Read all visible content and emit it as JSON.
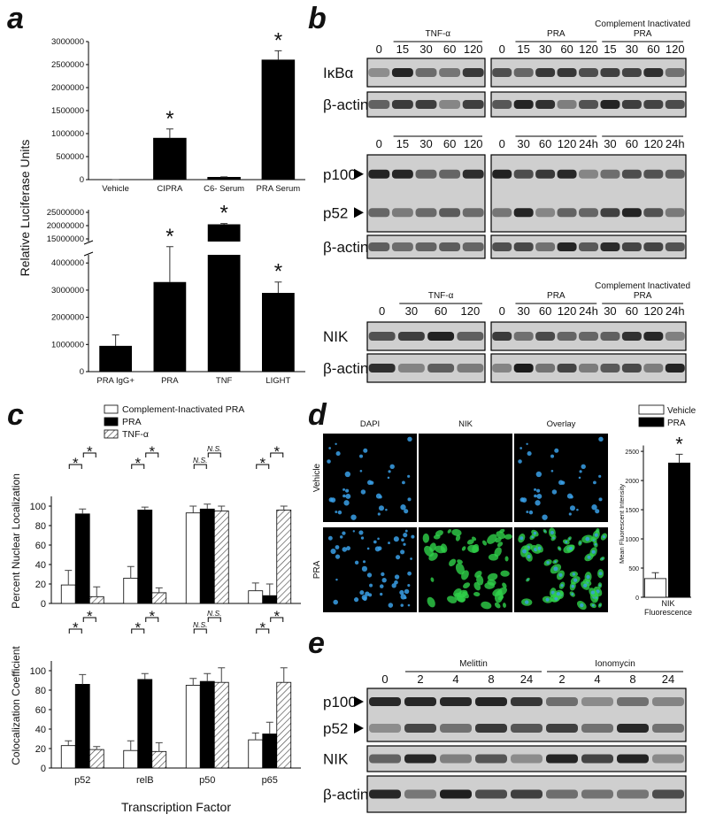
{
  "a": {
    "label": "a",
    "y_label": "Relative Luciferase Units",
    "top": {
      "type": "bar",
      "categories": [
        "Vehicle",
        "CIPRA",
        "C6- Serum",
        "PRA Serum"
      ],
      "values": [
        0,
        900000,
        50000,
        2600000
      ],
      "errors": [
        0,
        200000,
        10000,
        200000
      ],
      "annotations": [
        null,
        "*",
        null,
        "*"
      ],
      "color": "#000000",
      "ylim": [
        0,
        3000000
      ],
      "yticks": [
        0,
        500000,
        1000000,
        1500000,
        2000000,
        2500000,
        3000000
      ]
    },
    "bottom": {
      "type": "broken_bar",
      "categories": [
        "PRA IgG+",
        "PRA",
        "TNF",
        "LIGHT"
      ],
      "values": [
        950000,
        3300000,
        20500000,
        2900000
      ],
      "errors": [
        400000,
        1300000,
        300000,
        400000
      ],
      "annotations": [
        null,
        "*",
        "*",
        "*"
      ],
      "color": "#000000",
      "ylim": [
        0,
        4300000
      ],
      "yticks": [
        0,
        1000000,
        2000000,
        3000000,
        4000000
      ],
      "upper_ylim": [
        14000000,
        26000000
      ],
      "upper_yticks": [
        15000000,
        20000000,
        25000000
      ]
    }
  },
  "b": {
    "label": "b",
    "sections": [
      {
        "boxes": [
          {
            "groups": [
              {
                "lanes": [
                  "0"
                ]
              },
              {
                "title": "TNF-α",
                "lanes": [
                  "15",
                  "30",
                  "60",
                  "120"
                ]
              }
            ]
          },
          {
            "groups": [
              {
                "lanes": [
                  "0"
                ]
              },
              {
                "title": "PRA",
                "lanes": [
                  "15",
                  "30",
                  "60",
                  "120"
                ]
              },
              {
                "title": "Complement Inactivated PRA",
                "lanes": [
                  "15",
                  "30",
                  "60",
                  "120"
                ]
              }
            ]
          }
        ],
        "blots": [
          {
            "rows": [
              "IκBα"
            ]
          },
          {
            "rows": [
              "β-actin"
            ]
          }
        ]
      },
      {
        "boxes": [
          {
            "groups": [
              {
                "lanes": [
                  "0"
                ]
              },
              {
                "lanes": [
                  "15",
                  "30",
                  "60",
                  "120"
                ]
              }
            ]
          },
          {
            "groups": [
              {
                "lanes": [
                  "0"
                ]
              },
              {
                "lanes": [
                  "30",
                  "60",
                  "120",
                  "24h"
                ]
              },
              {
                "lanes": [
                  "30",
                  "60",
                  "120",
                  "24h"
                ]
              }
            ]
          }
        ],
        "blots": [
          {
            "rows": [
              "p100",
              "p52"
            ]
          },
          {
            "rows": [
              "β-actin"
            ]
          }
        ]
      },
      {
        "boxes": [
          {
            "groups": [
              {
                "lanes": [
                  "0"
                ]
              },
              {
                "title": "TNF-α",
                "lanes": [
                  "30",
                  "60",
                  "120"
                ]
              }
            ]
          },
          {
            "groups": [
              {
                "lanes": [
                  "0"
                ]
              },
              {
                "title": "PRA",
                "lanes": [
                  "30",
                  "60",
                  "120",
                  "24h"
                ]
              },
              {
                "title": "Complement Inactivated PRA",
                "lanes": [
                  "30",
                  "60",
                  "120",
                  "24h"
                ]
              }
            ]
          }
        ],
        "blots": [
          {
            "rows": [
              "NIK"
            ]
          },
          {
            "rows": [
              "β-actin"
            ]
          }
        ]
      }
    ]
  },
  "c": {
    "label": "c",
    "x_label": "Transcription Factor",
    "categories": [
      "p52",
      "relB",
      "p50",
      "p65"
    ],
    "series": [
      {
        "name": "Complement-Inactivated PRA",
        "color": "#ffffff"
      },
      {
        "name": "PRA",
        "color": "#000000"
      },
      {
        "name": "TNF-α",
        "color": "#ffffff",
        "pattern": "hatch"
      }
    ],
    "charts": [
      {
        "type": "grouped_bar",
        "y_label": "Percent Nuclear Localization",
        "values": [
          [
            19,
            26,
            93,
            13
          ],
          [
            92,
            96,
            97,
            8
          ],
          [
            7,
            11,
            95,
            96
          ]
        ],
        "errors": [
          [
            15,
            12,
            7,
            8
          ],
          [
            5,
            3,
            5,
            12
          ],
          [
            10,
            5,
            5,
            4
          ]
        ],
        "significance": [
          [
            "*",
            "*"
          ],
          [
            "*",
            "*"
          ],
          [
            "N.S.",
            "N.S."
          ],
          [
            "*",
            "*"
          ]
        ],
        "ylim": [
          0,
          110
        ],
        "yticks": [
          0,
          20,
          40,
          60,
          80,
          100
        ]
      },
      {
        "type": "grouped_bar",
        "y_label": "Colocalization Coefficient",
        "values": [
          [
            23,
            18,
            85,
            29
          ],
          [
            86,
            91,
            89,
            35
          ],
          [
            19,
            17,
            88,
            88
          ]
        ],
        "errors": [
          [
            5,
            10,
            7,
            7
          ],
          [
            10,
            6,
            8,
            12
          ],
          [
            3,
            9,
            15,
            15
          ]
        ],
        "significance": [
          [
            "*",
            "*"
          ],
          [
            "*",
            "*"
          ],
          [
            "N.S.",
            "N.S."
          ],
          [
            "*",
            "*"
          ]
        ],
        "ylim": [
          0,
          110
        ],
        "yticks": [
          0,
          20,
          40,
          60,
          80,
          100
        ]
      }
    ]
  },
  "d": {
    "label": "d",
    "columns": [
      "DAPI",
      "NIK",
      "Overlay"
    ],
    "column_colors": [
      "#2a3fd0",
      "#22b14c",
      "#222222"
    ],
    "rows": [
      "Vehicle",
      "PRA"
    ],
    "chart": {
      "type": "bar",
      "categories": [
        "Vehicle",
        "PRA"
      ],
      "colors": [
        "#ffffff",
        "#000000"
      ],
      "values": [
        320,
        2300
      ],
      "errors": [
        100,
        150
      ],
      "annotations": [
        null,
        "*"
      ],
      "x_label": "NIK Fluorescence",
      "y_label": "Mean Fluorescent Intensity",
      "ylim": [
        0,
        2600
      ],
      "yticks": [
        0,
        500,
        1000,
        1500,
        2000,
        2500
      ]
    }
  },
  "e": {
    "label": "e",
    "groups": [
      {
        "lanes": [
          "0"
        ]
      },
      {
        "title": "Melittin",
        "lanes": [
          "2",
          "4",
          "8",
          "24"
        ]
      },
      {
        "title": "Ionomycin",
        "lanes": [
          "2",
          "4",
          "8",
          "24"
        ]
      }
    ],
    "blots": [
      {
        "rows": [
          "p100",
          "p52"
        ]
      },
      {
        "rows": [
          "NIK"
        ]
      },
      {
        "rows": [
          "β-actin"
        ]
      }
    ]
  }
}
